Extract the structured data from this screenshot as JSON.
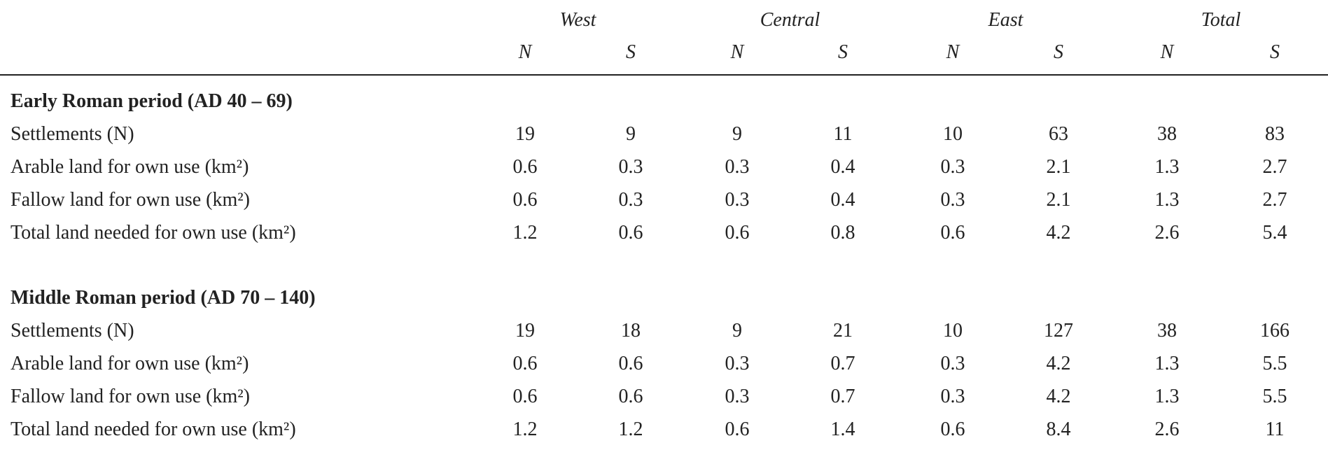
{
  "table": {
    "groups": [
      "West",
      "Central",
      "East",
      "Total"
    ],
    "subheaders": [
      "N",
      "S",
      "N",
      "S",
      "N",
      "S",
      "N",
      "S"
    ],
    "sections": [
      {
        "title": "Early Roman period (AD 40 – 69)",
        "rows": [
          {
            "label": "Settlements (N)",
            "cells": [
              "19",
              "9",
              "9",
              "11",
              "10",
              "63",
              "38",
              "83"
            ]
          },
          {
            "label": "Arable land for own use (km²)",
            "cells": [
              "0.6",
              "0.3",
              "0.3",
              "0.4",
              "0.3",
              "2.1",
              "1.3",
              "2.7"
            ]
          },
          {
            "label": "Fallow land for own use (km²)",
            "cells": [
              "0.6",
              "0.3",
              "0.3",
              "0.4",
              "0.3",
              "2.1",
              "1.3",
              "2.7"
            ]
          },
          {
            "label": "Total land needed for own use (km²)",
            "cells": [
              "1.2",
              "0.6",
              "0.6",
              "0.8",
              "0.6",
              "4.2",
              "2.6",
              "5.4"
            ]
          }
        ]
      },
      {
        "title": "Middle Roman period (AD 70 – 140)",
        "rows": [
          {
            "label": "Settlements (N)",
            "cells": [
              "19",
              "18",
              "9",
              "21",
              "10",
              "127",
              "38",
              "166"
            ]
          },
          {
            "label": "Arable land for own use (km²)",
            "cells": [
              "0.6",
              "0.6",
              "0.3",
              "0.7",
              "0.3",
              "4.2",
              "1.3",
              "5.5"
            ]
          },
          {
            "label": "Fallow land for own use (km²)",
            "cells": [
              "0.6",
              "0.6",
              "0.3",
              "0.7",
              "0.3",
              "4.2",
              "1.3",
              "5.5"
            ]
          },
          {
            "label": "Total land needed for own use (km²)",
            "cells": [
              "1.2",
              "1.2",
              "0.6",
              "1.4",
              "0.6",
              "8.4",
              "2.6",
              "11"
            ]
          }
        ]
      }
    ]
  }
}
